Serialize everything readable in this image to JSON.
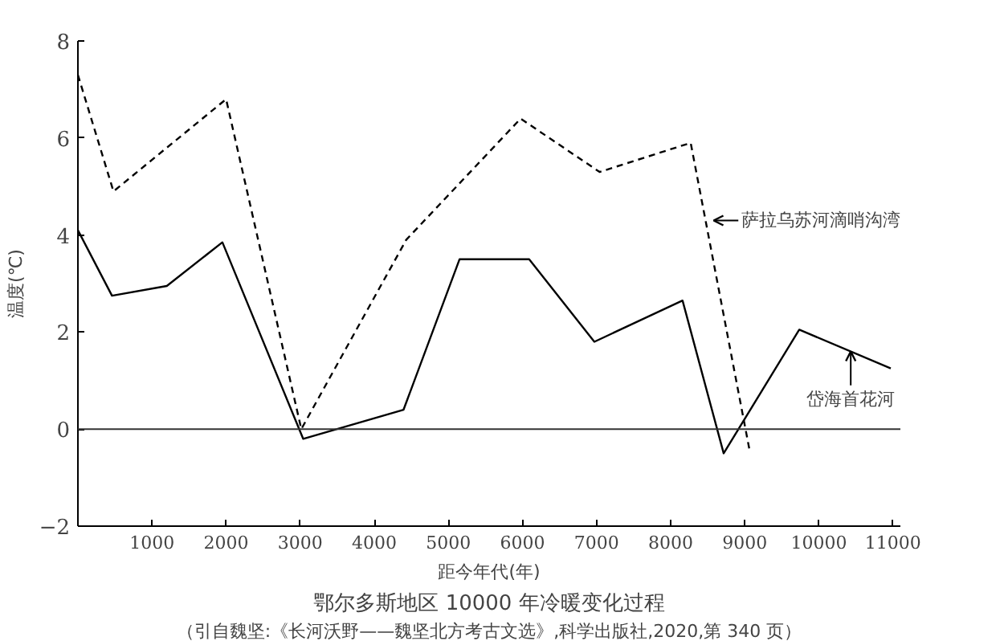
{
  "chart_data": {
    "type": "line",
    "title": "鄂尔多斯地区 10000 年冷暖变化过程",
    "xlabel": "距今年代(年)",
    "ylabel": "温度(℃)",
    "series": [
      {
        "color": "#000000",
        "line_style": "dashed",
        "x": [
          0,
          480,
          2000,
          3015,
          4430,
          5975,
          7040,
          8270,
          9060
        ],
        "values": [
          7.3,
          4.9,
          6.8,
          0.0,
          3.9,
          6.4,
          5.3,
          5.9,
          -0.4
        ]
      },
      {
        "color": "#000000",
        "line_style": "solid",
        "x": [
          0,
          460,
          1200,
          1950,
          3040,
          4395,
          5150,
          6090,
          6970,
          8160,
          8715,
          9735,
          10970
        ],
        "values": [
          4.1,
          2.75,
          2.95,
          3.85,
          -0.2,
          0.4,
          3.5,
          3.5,
          1.8,
          2.65,
          -0.5,
          2.05,
          1.25
        ]
      }
    ],
    "xlim": [
      0,
      11100
    ],
    "xticks": [
      1000,
      2000,
      3000,
      4000,
      5000,
      6000,
      7000,
      8000,
      9000,
      10000,
      11000
    ],
    "ylim": [
      -2,
      8
    ],
    "yticks": [
      -2,
      0,
      2,
      4,
      6,
      8
    ],
    "ref_lines": [
      {
        "axis": "y",
        "value": 0,
        "color": "#333333"
      }
    ],
    "grid": false,
    "marker": "none",
    "annotations": [
      {
        "text": "萨拉乌苏河滴哨沟湾",
        "x": 8580,
        "y": 4.3
      },
      {
        "text": "岱海首花河",
        "x": 10430,
        "y": 1.6
      },
      "（引自魏坚:《长河沃野——魏坚北方考古文选》,科学出版社,2020,第 340 页）"
    ]
  }
}
